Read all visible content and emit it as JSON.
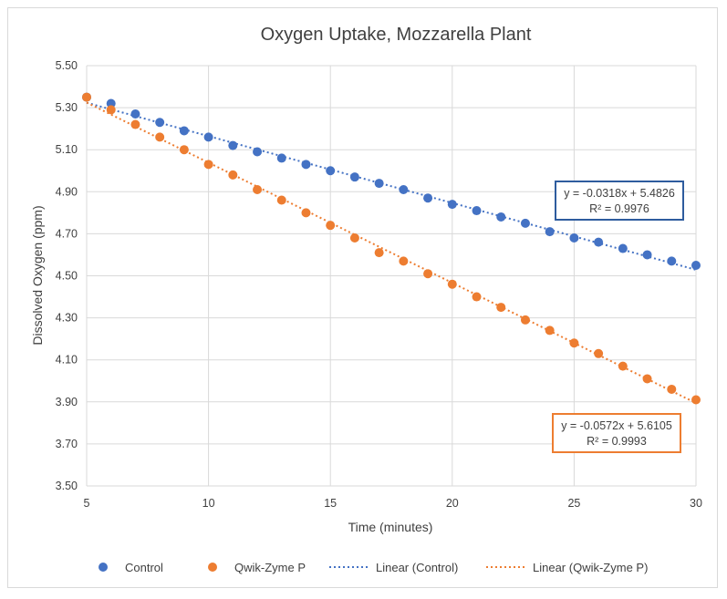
{
  "chart_data": {
    "type": "scatter",
    "title": "Oxygen Uptake, Mozzarella Plant",
    "xlabel": "Time (minutes)",
    "ylabel": "Dissolved Oxygen (ppm)",
    "xlim": [
      5,
      30
    ],
    "ylim": [
      3.5,
      5.5
    ],
    "xticks": [
      "5",
      "10",
      "15",
      "20",
      "25",
      "30"
    ],
    "yticks": [
      "3.50",
      "3.70",
      "3.90",
      "4.10",
      "4.30",
      "4.50",
      "4.70",
      "4.90",
      "5.10",
      "5.30",
      "5.50"
    ],
    "grid": true,
    "legend_position": "bottom",
    "series": [
      {
        "name": "Control",
        "color": "#4472c4",
        "x": [
          5,
          6,
          7,
          8,
          9,
          10,
          11,
          12,
          13,
          14,
          15,
          16,
          17,
          18,
          19,
          20,
          21,
          22,
          23,
          24,
          25,
          26,
          27,
          28,
          29,
          30
        ],
        "y": [
          5.35,
          5.32,
          5.27,
          5.23,
          5.19,
          5.16,
          5.12,
          5.09,
          5.06,
          5.03,
          5.0,
          4.97,
          4.94,
          4.91,
          4.87,
          4.84,
          4.81,
          4.78,
          4.75,
          4.71,
          4.68,
          4.66,
          4.63,
          4.6,
          4.57,
          4.55
        ]
      },
      {
        "name": "Qwik-Zyme P",
        "color": "#ed7d31",
        "x": [
          5,
          6,
          7,
          8,
          9,
          10,
          11,
          12,
          13,
          14,
          15,
          16,
          17,
          18,
          19,
          20,
          21,
          22,
          23,
          24,
          25,
          26,
          27,
          28,
          29,
          30
        ],
        "y": [
          5.35,
          5.29,
          5.22,
          5.16,
          5.1,
          5.03,
          4.98,
          4.91,
          4.86,
          4.8,
          4.74,
          4.68,
          4.61,
          4.57,
          4.51,
          4.46,
          4.4,
          4.35,
          4.29,
          4.24,
          4.18,
          4.13,
          4.07,
          4.01,
          3.96,
          3.91
        ]
      }
    ],
    "trendlines": [
      {
        "name": "Linear (Control)",
        "color": "#4472c4",
        "slope": -0.0318,
        "intercept": 5.4826,
        "equation": "y = -0.0318x + 5.4826",
        "r2": "R² = 0.9976"
      },
      {
        "name": "Linear (Qwik-Zyme P)",
        "color": "#ed7d31",
        "slope": -0.0572,
        "intercept": 5.6105,
        "equation": "y = -0.0572x + 5.6105",
        "r2": "R² = 0.9993"
      }
    ]
  }
}
